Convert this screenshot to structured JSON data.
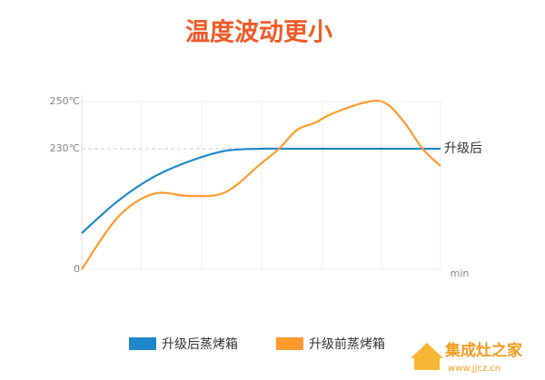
{
  "chart_data": {
    "type": "line",
    "title": "温度波动更小",
    "x_label": "min",
    "annotation": "升级后",
    "watermark": "集成灶之家",
    "watermark_url": "www.jjcz.cn",
    "x": [
      0,
      10,
      20,
      30,
      40,
      50,
      55,
      60,
      65,
      70,
      80,
      85,
      90,
      95,
      100
    ],
    "xlim": [
      0,
      100
    ],
    "ylim": [
      0,
      250
    ],
    "yticks": [
      {
        "value": 0,
        "label": "0"
      },
      {
        "value": 230,
        "label": "230℃"
      },
      {
        "value": 250,
        "label": "250℃"
      }
    ],
    "grid": true,
    "series": [
      {
        "name": "升级后蒸烤箱",
        "color": "#1f87c9",
        "values": [
          69,
          130,
          176,
          206,
          226,
          230,
          230,
          230,
          230,
          230,
          230,
          230,
          230,
          230,
          230
        ]
      },
      {
        "name": "升级前蒸烤箱",
        "color": "#ff9a2e",
        "values": [
          0,
          99,
          144,
          140,
          147,
          202,
          230,
          238,
          241,
          245,
          250,
          249,
          241,
          230,
          197
        ]
      }
    ]
  }
}
